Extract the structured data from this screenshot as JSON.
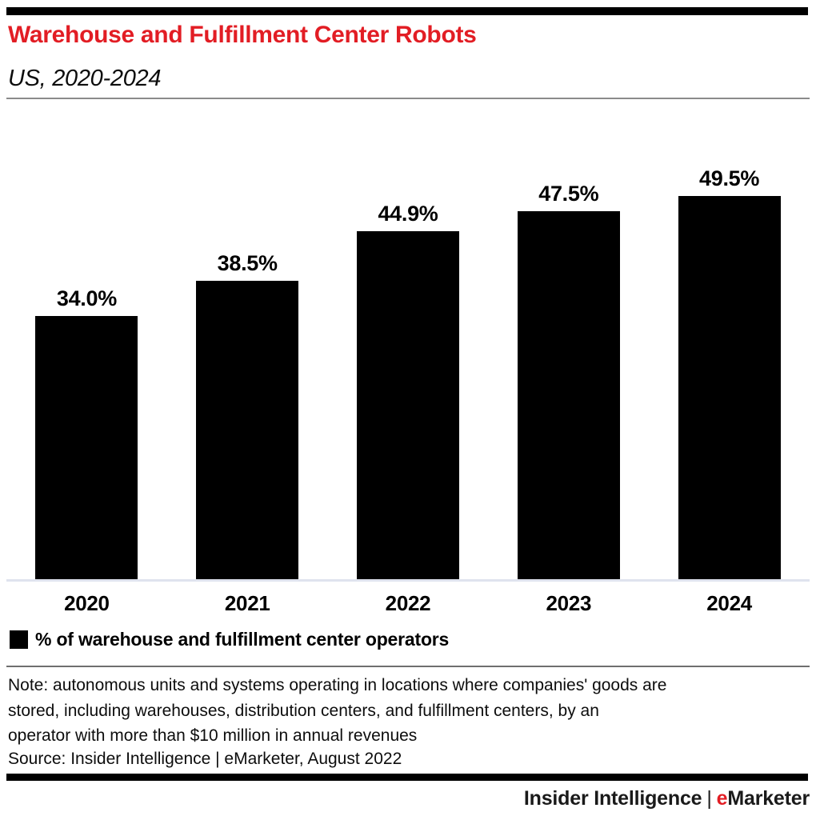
{
  "header": {
    "title": "Warehouse and Fulfillment Center Robots",
    "subtitle": "US, 2020-2024"
  },
  "chart_data": {
    "type": "bar",
    "title": "Warehouse and Fulfillment Center Robots",
    "subtitle": "US, 2020-2024",
    "categories": [
      "2020",
      "2021",
      "2022",
      "2023",
      "2024"
    ],
    "values": [
      34.0,
      38.5,
      44.9,
      47.5,
      49.5
    ],
    "value_labels": [
      "34.0%",
      "38.5%",
      "44.9%",
      "47.5%",
      "49.5%"
    ],
    "xlabel": "",
    "ylabel": "% of warehouse and fulfillment center operators",
    "ylim": [
      0,
      62.5
    ],
    "grid": false,
    "bar_color": "#000000",
    "legend_position": "bottom-left",
    "legend": [
      {
        "label": "% of warehouse and fulfillment center operators",
        "color": "#000000"
      }
    ]
  },
  "notes": {
    "note_lines": [
      "Note: autonomous units and systems operating in locations where companies' goods are",
      "stored, including warehouses, distribution centers, and fulfillment centers, by an",
      "operator with more than $10 million in annual revenues"
    ],
    "source": "Source: Insider Intelligence | eMarketer, August 2022"
  },
  "footer": {
    "brand_left": "Insider Intelligence",
    "pipe": "|",
    "brand_right_e": "e",
    "brand_right_rest": "Marketer"
  },
  "colors": {
    "accent_red": "#e21d24",
    "bar_black": "#000000",
    "axis_line": "#dfe3ee",
    "header_rule": "#8b8b8b",
    "legend_rule": "#6f6f6f"
  }
}
